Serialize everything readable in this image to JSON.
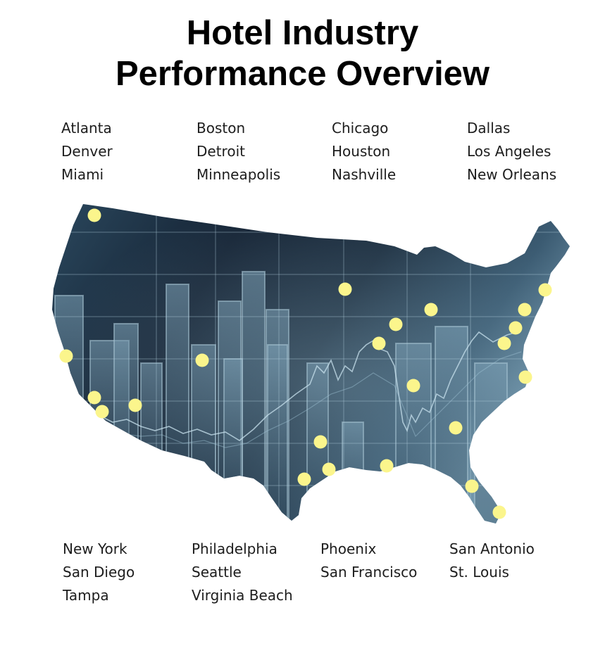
{
  "title_line1": "Hotel Industry",
  "title_line2": "Performance Overview",
  "cities_top": [
    [
      "Atlanta",
      "Denver",
      "Miami"
    ],
    [
      "Boston",
      "Detroit",
      "Minneapolis"
    ],
    [
      "Chicago",
      "Houston",
      "Nashville"
    ],
    [
      "Dallas",
      "Los Angeles",
      "New Orleans"
    ]
  ],
  "cities_bottom": [
    [
      "New York",
      "San Diego",
      "Tampa"
    ],
    [
      "Philadelphia",
      "Seattle",
      "Virginia Beach"
    ],
    [
      "Phoenix",
      "San Francisco"
    ],
    [
      "San Antonio",
      "St. Louis"
    ]
  ],
  "colors": {
    "map_dark": "#0f1a28",
    "map_mid": "#2c4a60",
    "map_light": "#6f93a8",
    "marker": "#fbf58c"
  },
  "markers": {
    "count": 25,
    "icon": "yellow-circle-marker"
  }
}
